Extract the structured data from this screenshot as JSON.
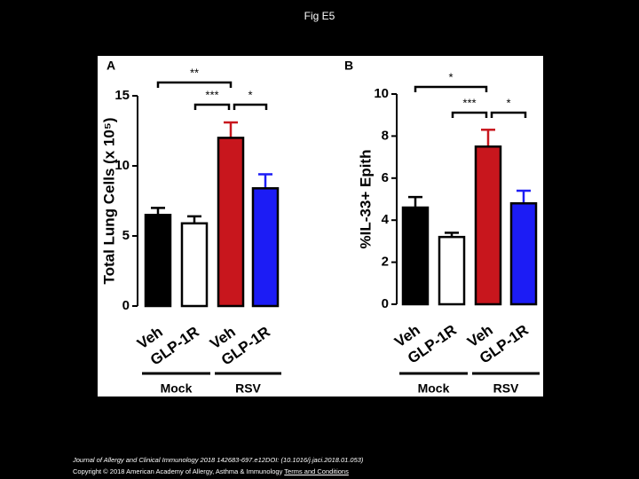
{
  "title": "Fig E5",
  "chart_data": [
    {
      "type": "bar",
      "panel": "A",
      "ylabel": "Total Lung Cells (x 10⁵)",
      "categories": [
        "Veh",
        "GLP-1R",
        "Veh",
        "GLP-1R"
      ],
      "groups": [
        "Mock",
        "RSV"
      ],
      "values": [
        6.5,
        5.9,
        12.0,
        8.4
      ],
      "errors": [
        0.5,
        0.5,
        1.1,
        1.0
      ],
      "colors": [
        "#000000",
        "#ffffff",
        "#c8161d",
        "#1c1cf5"
      ],
      "ylim": [
        0,
        15
      ],
      "yticks": [
        0,
        5,
        10,
        15
      ],
      "annotations": [
        "**",
        "***",
        "*"
      ]
    },
    {
      "type": "bar",
      "panel": "B",
      "ylabel": "%IL-33+ Epith",
      "categories": [
        "Veh",
        "GLP-1R",
        "Veh",
        "GLP-1R"
      ],
      "groups": [
        "Mock",
        "RSV"
      ],
      "values": [
        4.6,
        3.2,
        7.5,
        4.8
      ],
      "errors": [
        0.5,
        0.2,
        0.8,
        0.6
      ],
      "colors": [
        "#000000",
        "#ffffff",
        "#c8161d",
        "#1c1cf5"
      ],
      "ylim": [
        0,
        10
      ],
      "yticks": [
        0,
        2,
        4,
        6,
        8,
        10
      ],
      "annotations": [
        "*",
        "***",
        "*"
      ]
    }
  ],
  "footer": {
    "citation": "Journal of Allergy and Clinical Immunology 2018 142683-697.e12DOI: (10.1016/j.jaci.2018.01.053)",
    "copyright": "Copyright © 2018 American Academy of Allergy, Asthma & Immunology",
    "link": "Terms and Conditions"
  }
}
